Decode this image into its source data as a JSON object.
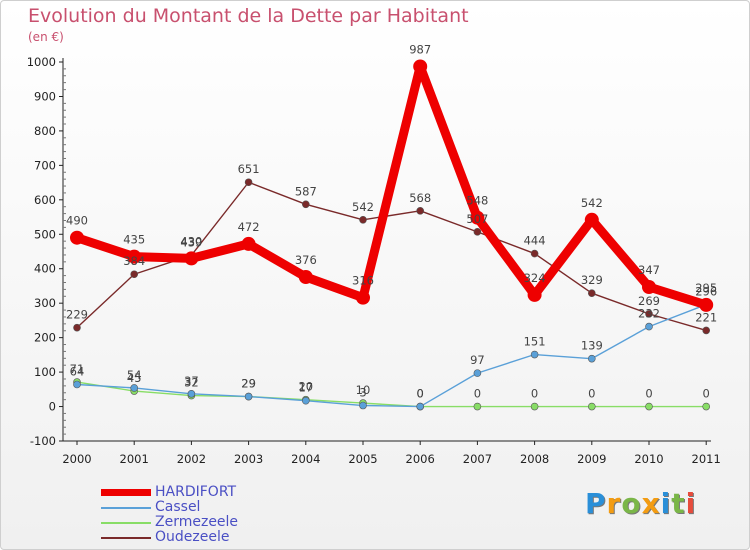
{
  "header": {
    "title": "Evolution du Montant de la Dette par Habitant",
    "unit": "(en €)"
  },
  "logo": {
    "letters": [
      "P",
      "r",
      "o",
      "x",
      "i",
      "t",
      "i"
    ],
    "colors": [
      "#2a8fd8",
      "#f39c12",
      "#7ab648",
      "#f39c12",
      "#2a8fd8",
      "#7ab648",
      "#e74c3c"
    ]
  },
  "chart_data": {
    "type": "line",
    "title": "Evolution du Montant de la Dette par Habitant",
    "ylabel": "(en €)",
    "xlabel": "",
    "x": [
      "2000",
      "2001",
      "2002",
      "2003",
      "2004",
      "2005",
      "2006",
      "2007",
      "2008",
      "2009",
      "2010",
      "2011"
    ],
    "ylim": [
      -100,
      1000
    ],
    "yticks": [
      -100,
      0,
      100,
      200,
      300,
      400,
      500,
      600,
      700,
      800,
      900,
      1000
    ],
    "grid": false,
    "legend": "bottom-left",
    "series": [
      {
        "name": "HARDIFORT",
        "color": "#ee0000",
        "values": [
          490,
          435,
          430,
          472,
          376,
          316,
          987,
          548,
          324,
          542,
          347,
          295
        ]
      },
      {
        "name": "Cassel",
        "color": "#5aa0d8",
        "values": [
          64,
          54,
          37,
          29,
          17,
          3,
          0,
          97,
          151,
          139,
          232,
          296
        ]
      },
      {
        "name": "Zermezeele",
        "color": "#88dd66",
        "values": [
          71,
          45,
          32,
          29,
          20,
          10,
          0,
          0,
          0,
          0,
          0,
          0
        ]
      },
      {
        "name": "Oudezeele",
        "color": "#7a2a2a",
        "values": [
          229,
          384,
          439,
          651,
          587,
          542,
          568,
          507,
          444,
          329,
          269,
          221
        ]
      }
    ]
  }
}
